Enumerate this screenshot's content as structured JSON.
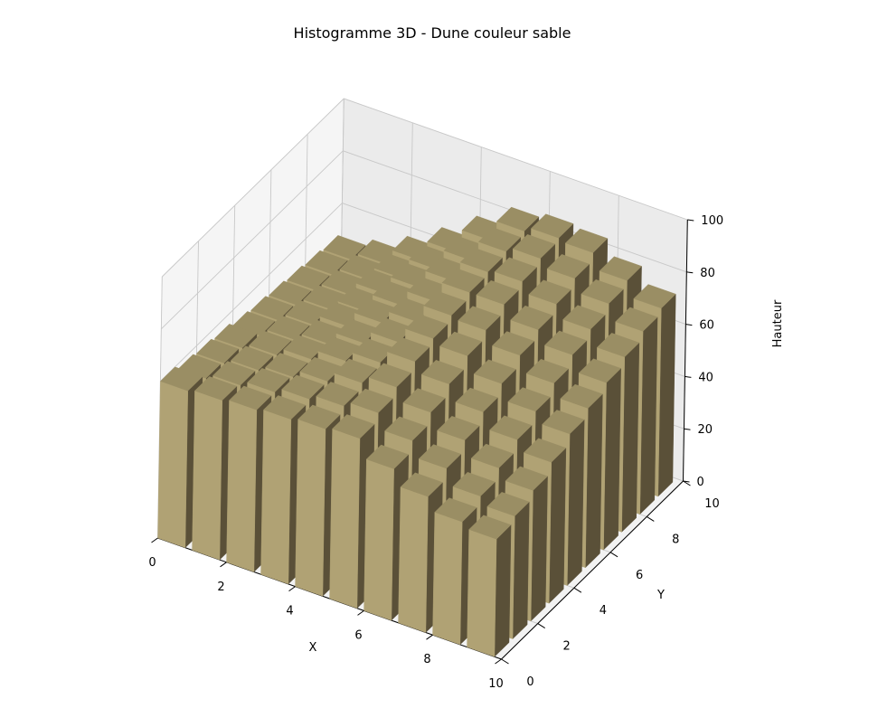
{
  "chart_data": {
    "type": "bar3d",
    "title": "Histogramme 3D - Dune couleur sable",
    "xlabel": "X",
    "ylabel": "Y",
    "zlabel": "Hauteur",
    "xlim": [
      0,
      10
    ],
    "ylim": [
      0,
      10
    ],
    "zlim": [
      0,
      100
    ],
    "xticks": [
      0,
      2,
      4,
      6,
      8,
      10
    ],
    "yticks": [
      0,
      2,
      4,
      6,
      8,
      10
    ],
    "zticks": [
      0,
      20,
      40,
      60,
      80,
      100
    ],
    "grid": true,
    "bar_color": "#b0a274",
    "bar_top_color": "#9a8e64",
    "bar_side_color": "#5a5038",
    "bar_width": 0.8,
    "bar_depth": 0.8,
    "x_positions": [
      0,
      1,
      2,
      3,
      4,
      5,
      6,
      7,
      8,
      9
    ],
    "y_positions": [
      0,
      1,
      2,
      3,
      4,
      5,
      6,
      7,
      8,
      9
    ],
    "heights": [
      [
        60,
        58,
        57,
        56,
        54,
        53,
        52,
        51,
        50,
        49
      ],
      [
        61,
        60,
        59,
        58,
        57,
        56,
        55,
        54,
        53,
        52
      ],
      [
        62,
        62,
        61,
        61,
        60,
        60,
        59,
        59,
        58,
        58
      ],
      [
        63,
        64,
        64,
        65,
        65,
        66,
        66,
        66,
        66,
        66
      ],
      [
        64,
        66,
        68,
        69,
        70,
        71,
        72,
        73,
        74,
        75
      ],
      [
        65,
        68,
        71,
        74,
        76,
        78,
        80,
        81,
        82,
        83
      ],
      [
        58,
        62,
        66,
        70,
        74,
        77,
        80,
        82,
        84,
        85
      ],
      [
        52,
        56,
        60,
        64,
        68,
        72,
        75,
        78,
        81,
        84
      ],
      [
        47,
        50,
        54,
        58,
        62,
        66,
        70,
        73,
        76,
        78
      ],
      [
        45,
        47,
        50,
        54,
        58,
        61,
        64,
        67,
        70,
        72
      ]
    ]
  }
}
